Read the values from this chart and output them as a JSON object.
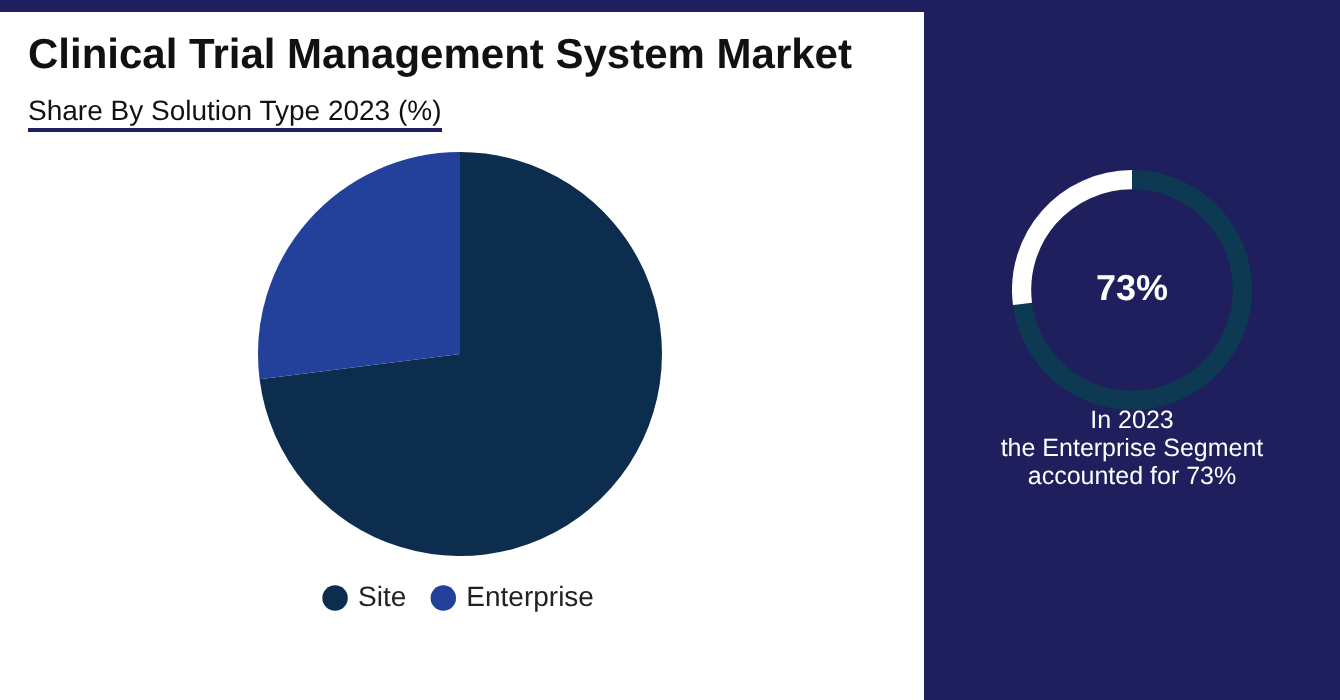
{
  "chart_data": [
    {
      "type": "pie",
      "title": "Clinical Trial Management System Market",
      "subtitle": "Share By Solution Type 2023 (%)",
      "categories": [
        "Site",
        "Enterprise"
      ],
      "values": [
        73,
        27
      ],
      "colors": [
        "#0c2d4e",
        "#23409a"
      ],
      "legend": "bottom"
    },
    {
      "type": "donut",
      "categories": [
        null,
        null
      ],
      "values": [
        73,
        27
      ],
      "colors": [
        "#0d3a52",
        "#ffffff"
      ],
      "value_labels": [
        "73%",
        null
      ],
      "annotations": [
        "In 2023",
        "the Enterprise Segment",
        "accounted for 73%"
      ]
    }
  ]
}
